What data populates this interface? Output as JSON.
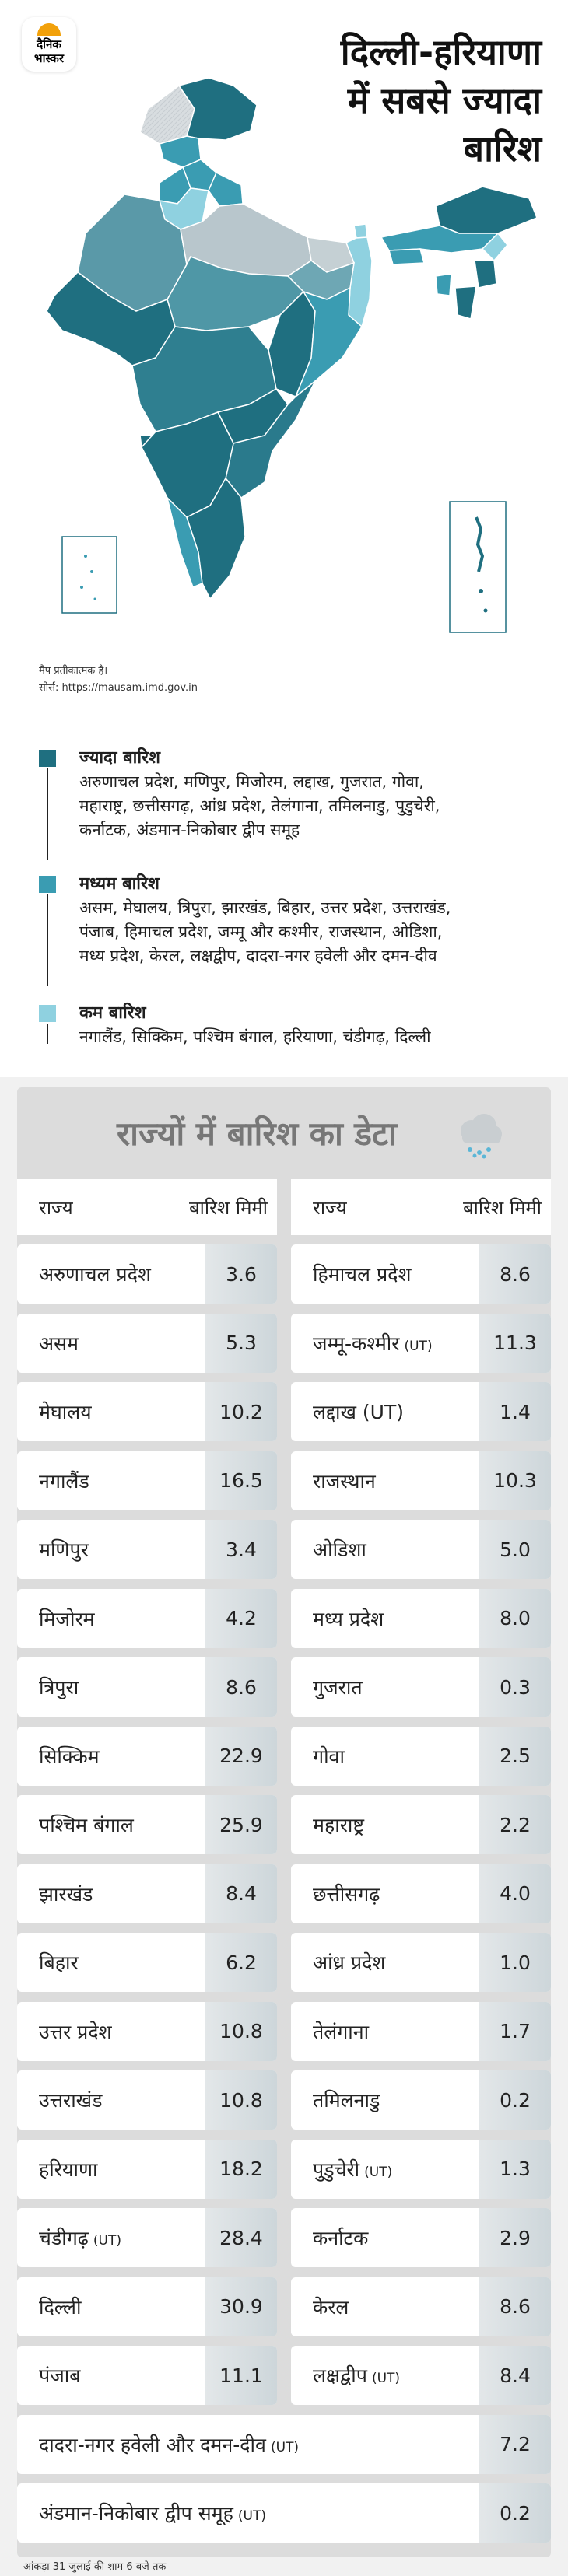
{
  "brand": {
    "line1": "दैनिक",
    "line2": "भास्कर"
  },
  "title": {
    "line1": "दिल्ली-हरियाणा",
    "line2": "में सबसे ज्यादा",
    "line3": "बारिश"
  },
  "map_note": "मैप प्रतीकात्मक है।",
  "source": "सोर्स: https://mausam.imd.gov.in",
  "colors": {
    "high": "#1f6f80",
    "medium": "#3a9cb2",
    "low": "#8fd1e0"
  },
  "legend": [
    {
      "label": "ज्यादा बारिश",
      "text_lines": [
        "अरुणाचल प्रदेश, मणिपुर, मिजोरम, लद्दाख, गुजरात, गोवा,",
        "महाराष्ट्र, छत्तीसगढ़, आंध्र प्रदेश, तेलंगाना, तमिलनाडु, पुडुचेरी,",
        "कर्नाटक, अंडमान-निकोबार द्वीप समूह"
      ]
    },
    {
      "label": "मध्यम बारिश",
      "text_lines": [
        "असम, मेघालय, त्रिपुरा, झारखंड, बिहार, उत्तर प्रदेश, उत्तराखंड,",
        "पंजाब, हिमाचल प्रदेश, जम्मू और कश्मीर, राजस्थान, ओडिशा,",
        "मध्य प्रदेश, केरल, लक्षद्वीप, दादरा-नगर हवेली और दमन-दीव"
      ]
    },
    {
      "label": "कम बारिश",
      "text_lines": [
        "नगालैंड, सिक्किम, पश्चिम बंगाल, हरियाणा, चंडीगढ़, दिल्ली"
      ]
    }
  ],
  "table": {
    "title": "राज्यों में बारिश का डेटा",
    "col_state": "राज्य",
    "col_rain": "बारिश मिमी",
    "left": [
      {
        "name": "अरुणाचल प्रदेश",
        "ut": "",
        "value": "3.6"
      },
      {
        "name": "असम",
        "ut": "",
        "value": "5.3"
      },
      {
        "name": "मेघालय",
        "ut": "",
        "value": "10.2"
      },
      {
        "name": "नगालैंड",
        "ut": "",
        "value": "16.5"
      },
      {
        "name": "मणिपुर",
        "ut": "",
        "value": "3.4"
      },
      {
        "name": "मिजोरम",
        "ut": "",
        "value": "4.2"
      },
      {
        "name": "त्रिपुरा",
        "ut": "",
        "value": "8.6"
      },
      {
        "name": "सिक्किम",
        "ut": "",
        "value": "22.9"
      },
      {
        "name": "पश्चिम बंगाल",
        "ut": "",
        "value": "25.9"
      },
      {
        "name": "झारखंड",
        "ut": "",
        "value": "8.4"
      },
      {
        "name": "बिहार",
        "ut": "",
        "value": "6.2"
      },
      {
        "name": "उत्तर प्रदेश",
        "ut": "",
        "value": "10.8"
      },
      {
        "name": "उत्तराखंड",
        "ut": "",
        "value": "10.8"
      },
      {
        "name": "हरियाणा",
        "ut": "",
        "value": "18.2"
      },
      {
        "name": "चंडीगढ़",
        "ut": "(UT)",
        "value": "28.4"
      },
      {
        "name": "दिल्ली",
        "ut": "",
        "value": "30.9"
      },
      {
        "name": "पंजाब",
        "ut": "",
        "value": "11.1"
      }
    ],
    "right": [
      {
        "name": "हिमाचल प्रदेश",
        "ut": "",
        "value": "8.6"
      },
      {
        "name": "जम्मू-कश्मीर",
        "ut": "(UT)",
        "value": "11.3"
      },
      {
        "name": "लद्दाख (UT)",
        "ut": "",
        "value": "1.4"
      },
      {
        "name": "राजस्थान",
        "ut": "",
        "value": "10.3"
      },
      {
        "name": "ओडिशा",
        "ut": "",
        "value": "5.0"
      },
      {
        "name": "मध्य प्रदेश",
        "ut": "",
        "value": "8.0"
      },
      {
        "name": "गुजरात",
        "ut": "",
        "value": "0.3"
      },
      {
        "name": "गोवा",
        "ut": "",
        "value": "2.5"
      },
      {
        "name": "महाराष्ट्र",
        "ut": "",
        "value": "2.2"
      },
      {
        "name": "छत्तीसगढ़",
        "ut": "",
        "value": "4.0"
      },
      {
        "name": "आंध्र प्रदेश",
        "ut": "",
        "value": "1.0"
      },
      {
        "name": "तेलंगाना",
        "ut": "",
        "value": "1.7"
      },
      {
        "name": "तमिलनाडु",
        "ut": "",
        "value": "0.2"
      },
      {
        "name": "पुडुचेरी",
        "ut": "(UT)",
        "value": "1.3"
      },
      {
        "name": "कर्नाटक",
        "ut": "",
        "value": "2.9"
      },
      {
        "name": "केरल",
        "ut": "",
        "value": "8.6"
      },
      {
        "name": "लक्षद्वीप",
        "ut": "(UT)",
        "value": "8.4"
      }
    ],
    "full": [
      {
        "name": "दादरा-नगर हवेली और दमन-दीव",
        "ut": "(UT)",
        "value": "7.2"
      },
      {
        "name": "अंडमान-निकोबार द्वीप समूह",
        "ut": "(UT)",
        "value": "0.2"
      }
    ]
  },
  "footer": "आंकड़ा 31 जुलाई की शाम 6 बजे तक"
}
